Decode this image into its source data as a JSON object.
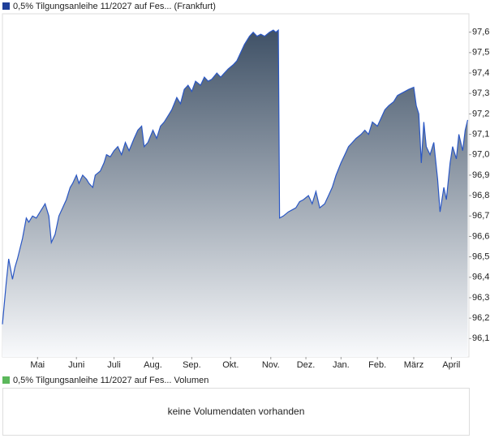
{
  "chart_data": {
    "type": "area",
    "legend": "0,5% Tilgungsanleihe 11/2027 auf Fes... (Frankfurt)",
    "volume_legend": "0,5% Tilgungsanleihe 11/2027 auf Fes... Volumen",
    "volume_legend_color": "#5cb85c",
    "volume_message": "keine Volumendaten vorhanden",
    "color": "#2a57c4",
    "xlim": [
      0,
      372
    ],
    "xticks": [
      {
        "value": 28,
        "label": "Mai"
      },
      {
        "value": 59,
        "label": "Juni"
      },
      {
        "value": 89,
        "label": "Juli"
      },
      {
        "value": 120,
        "label": "Aug."
      },
      {
        "value": 151,
        "label": "Sep."
      },
      {
        "value": 182,
        "label": "Okt."
      },
      {
        "value": 214,
        "label": "Nov."
      },
      {
        "value": 242,
        "label": "Dez."
      },
      {
        "value": 270,
        "label": "Jan."
      },
      {
        "value": 299,
        "label": "Feb."
      },
      {
        "value": 328,
        "label": "März"
      },
      {
        "value": 358,
        "label": "April"
      }
    ],
    "ylim": [
      96.01,
      97.69
    ],
    "yticks": [
      {
        "value": 96.1,
        "label": "96,1"
      },
      {
        "value": 96.2,
        "label": "96,2"
      },
      {
        "value": 96.3,
        "label": "96,3"
      },
      {
        "value": 96.4,
        "label": "96,4"
      },
      {
        "value": 96.5,
        "label": "96,5"
      },
      {
        "value": 96.6,
        "label": "96,6"
      },
      {
        "value": 96.7,
        "label": "96,7"
      },
      {
        "value": 96.8,
        "label": "96,8"
      },
      {
        "value": 96.9,
        "label": "96,9"
      },
      {
        "value": 97.0,
        "label": "97,0"
      },
      {
        "value": 97.1,
        "label": "97,1"
      },
      {
        "value": 97.2,
        "label": "97,2"
      },
      {
        "value": 97.3,
        "label": "97,3"
      },
      {
        "value": 97.4,
        "label": "97,4"
      },
      {
        "value": 97.5,
        "label": "97,5"
      },
      {
        "value": 97.6,
        "label": "97,6"
      }
    ],
    "x": [
      0,
      3,
      5,
      8,
      10,
      12,
      16,
      19,
      21,
      24,
      27,
      30,
      34,
      37,
      39,
      42,
      45,
      48,
      51,
      54,
      56,
      59,
      61,
      64,
      67,
      69,
      72,
      74,
      78,
      81,
      83,
      86,
      89,
      92,
      95,
      98,
      101,
      105,
      108,
      111,
      113,
      116,
      120,
      123,
      126,
      129,
      133,
      135,
      139,
      142,
      145,
      148,
      151,
      154,
      158,
      161,
      164,
      167,
      171,
      174,
      177,
      180,
      184,
      187,
      190,
      193,
      197,
      200,
      203,
      206,
      209,
      213,
      216,
      218,
      220,
      221,
      224,
      228,
      231,
      234,
      237,
      240,
      244,
      247,
      250,
      253,
      257,
      260,
      263,
      266,
      270,
      273,
      276,
      279,
      282,
      286,
      289,
      292,
      295,
      299,
      302,
      305,
      308,
      312,
      315,
      318,
      321,
      324,
      328,
      330,
      332,
      334,
      336,
      338,
      341,
      344,
      347,
      349,
      352,
      354,
      357,
      359,
      362,
      364,
      367,
      369,
      371
    ],
    "values": [
      96.17,
      96.37,
      96.49,
      96.39,
      96.45,
      96.49,
      96.59,
      96.69,
      96.67,
      96.7,
      96.69,
      96.72,
      96.76,
      96.7,
      96.57,
      96.61,
      96.7,
      96.74,
      96.78,
      96.84,
      96.86,
      96.9,
      96.86,
      96.9,
      96.88,
      96.86,
      96.84,
      96.9,
      96.92,
      96.96,
      97.0,
      96.99,
      97.02,
      97.04,
      97.0,
      97.06,
      97.02,
      97.08,
      97.12,
      97.14,
      97.04,
      97.06,
      97.12,
      97.08,
      97.14,
      97.16,
      97.2,
      97.22,
      97.28,
      97.25,
      97.32,
      97.34,
      97.31,
      97.36,
      97.34,
      97.38,
      97.36,
      97.37,
      97.4,
      97.38,
      97.4,
      97.42,
      97.44,
      97.46,
      97.5,
      97.54,
      97.58,
      97.6,
      97.58,
      97.59,
      97.58,
      97.6,
      97.61,
      97.6,
      97.61,
      96.69,
      96.7,
      96.72,
      96.73,
      96.74,
      96.77,
      96.78,
      96.8,
      96.76,
      96.82,
      96.74,
      96.76,
      96.8,
      96.84,
      96.9,
      96.96,
      97.0,
      97.04,
      97.06,
      97.08,
      97.1,
      97.12,
      97.1,
      97.16,
      97.14,
      97.18,
      97.22,
      97.24,
      97.26,
      97.29,
      97.3,
      97.31,
      97.32,
      97.33,
      97.24,
      97.2,
      96.96,
      97.16,
      97.04,
      97.0,
      97.06,
      96.88,
      96.72,
      96.84,
      96.78,
      96.96,
      97.04,
      96.98,
      97.1,
      97.02,
      97.12,
      97.17
    ]
  }
}
